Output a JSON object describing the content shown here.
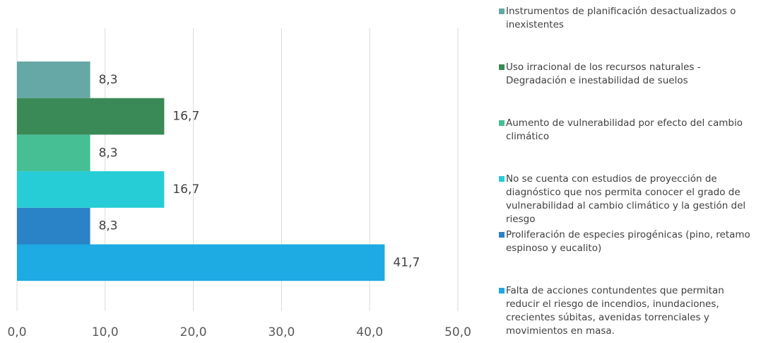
{
  "chart_data": {
    "type": "bar",
    "orientation": "horizontal",
    "series": [
      {
        "name": "Instrumentos de planificación desactualizados o inexistentes",
        "color": "#65a8a5",
        "values": [
          8.3
        ],
        "value_labels": [
          "8,3"
        ]
      },
      {
        "name": "Uso irracional de los recursos naturales - Degradación e inestabilidad de suelos",
        "color": "#3a8a57",
        "values": [
          16.7
        ],
        "value_labels": [
          "16,7"
        ]
      },
      {
        "name": "Aumento de vulnerabilidad por efecto del cambio climático",
        "color": "#45bf93",
        "values": [
          8.3
        ],
        "value_labels": [
          "8,3"
        ]
      },
      {
        "name": "No se cuenta con estudios de proyección de diagnóstico que nos permita conocer el grado de vulnerabilidad al cambio climático y la gestión del riesgo",
        "color": "#27cdd6",
        "values": [
          16.7
        ],
        "value_labels": [
          "16,7"
        ]
      },
      {
        "name": "Proliferación de especies pirogénicas (pino, retamo espinoso y eucalito)",
        "color": "#2a82c7",
        "values": [
          8.3
        ],
        "value_labels": [
          "8,3"
        ]
      },
      {
        "name": "Falta de acciones contundentes que permitan reducir el riesgo de incendios, inundaciones, crecientes súbitas, avenidas torrenciales y movimientos en masa.",
        "color": "#1eaae2",
        "values": [
          41.7
        ],
        "value_labels": [
          "41,7"
        ]
      }
    ],
    "xlim": [
      0,
      50
    ],
    "xticks": [
      {
        "value": 0,
        "label": "0,0"
      },
      {
        "value": 10,
        "label": "10,0"
      },
      {
        "value": 20,
        "label": "20,0"
      },
      {
        "value": 30,
        "label": "30,0"
      },
      {
        "value": 40,
        "label": "40,0"
      },
      {
        "value": 50,
        "label": "50,0"
      }
    ],
    "grid": true,
    "legend": "right"
  }
}
